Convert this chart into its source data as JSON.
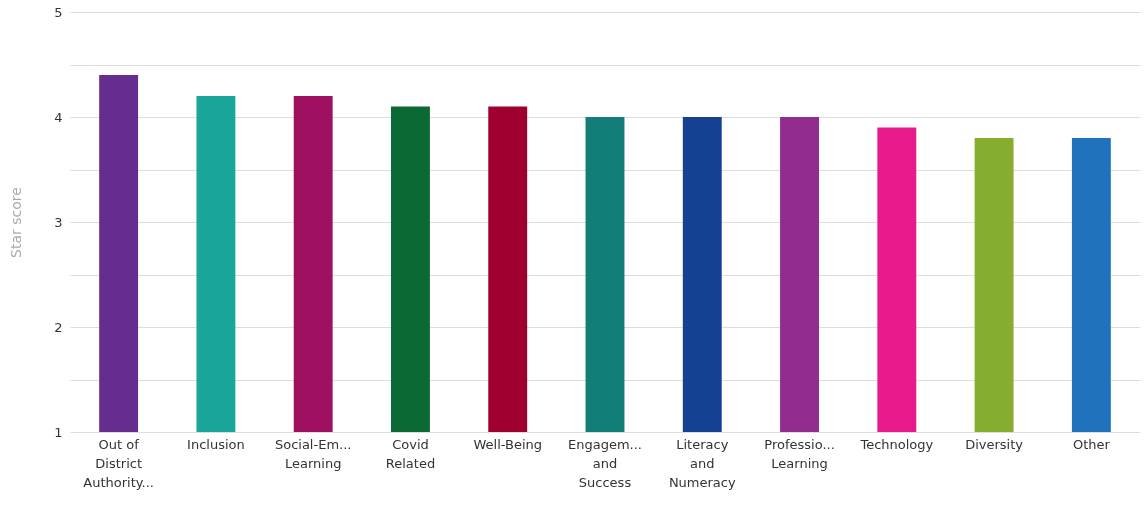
{
  "chart_data": {
    "type": "bar",
    "ylabel": "Star score",
    "categories": [
      "Out of District Authority...",
      "Inclusion",
      "Social-Em... Learning",
      "Covid Related",
      "Well-Being",
      "Engagem... and Success",
      "Literacy and Numeracy",
      "Professio... Learning",
      "Technology",
      "Diversity",
      "Other"
    ],
    "values": [
      4.4,
      4.2,
      4.2,
      4.1,
      4.1,
      4.0,
      4.0,
      4.0,
      3.9,
      3.8,
      3.8
    ],
    "colors": [
      "#662d91",
      "#1aa59a",
      "#9e1060",
      "#0b6933",
      "#a0002f",
      "#137e78",
      "#154193",
      "#922b8e",
      "#e7198b",
      "#87ad2e",
      "#1f72bb"
    ],
    "ylim": [
      1,
      5
    ],
    "yticks": [
      1,
      {
        "value": 1.5,
        "label": null
      },
      2,
      {
        "value": 2.5,
        "label": null
      },
      3,
      {
        "value": 3.5,
        "label": null
      },
      4,
      {
        "value": 4.5,
        "label": null
      },
      5
    ],
    "grid": "y"
  }
}
